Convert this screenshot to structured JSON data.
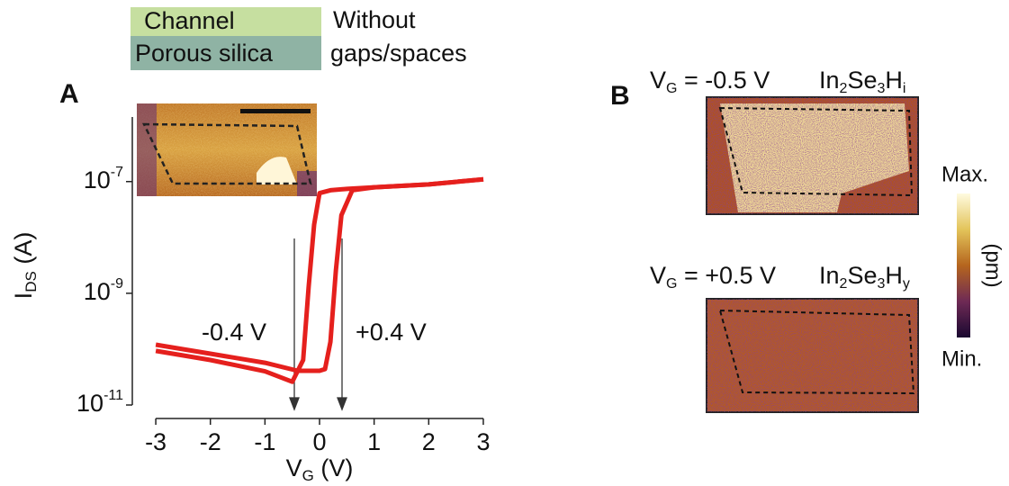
{
  "legend_boxes": {
    "channel": "Channel",
    "porous_silica": "Porous silica",
    "note": [
      "Without",
      "gaps/spaces"
    ]
  },
  "panel_a": {
    "label": "A"
  },
  "panel_b": {
    "label": "B",
    "images": [
      {
        "gate": [
          "V",
          "G",
          " = -0.5 V"
        ],
        "phase": [
          "In",
          "2",
          "Se",
          "3",
          "H",
          "i"
        ]
      },
      {
        "gate": [
          "V",
          "G",
          " = +0.5 V"
        ],
        "phase": [
          "In",
          "2",
          "Se",
          "3",
          "H",
          "y"
        ]
      }
    ],
    "colorbar": {
      "max": "Max.",
      "min": "Min.",
      "unit": "(pm)"
    }
  },
  "chart_data": {
    "type": "line",
    "xlabel": [
      "V",
      "G",
      " (V)"
    ],
    "ylabel": [
      "I",
      "DS",
      " (A)"
    ],
    "log_y": true,
    "xlim": [
      -3.43,
      3.38
    ],
    "ylim": [
      1e-11,
      2.5e-06
    ],
    "xticks": [
      -3,
      -2,
      -1,
      0,
      1,
      2,
      3
    ],
    "yticks": [
      {
        "value": 1e-11,
        "label": "10",
        "sup": "-11"
      },
      {
        "value": 1e-09,
        "label": "10",
        "sup": "-9"
      },
      {
        "value": 1e-07,
        "label": "10",
        "sup": "-7"
      }
    ],
    "series": [
      {
        "color": "#e5201d",
        "x": [
          -3,
          -2,
          -1,
          -0.5,
          -0.3,
          -0.2,
          -0.1,
          0,
          0.2,
          0.5,
          1,
          2,
          3
        ],
        "values": [
          9.3e-11,
          6.4e-11,
          4e-11,
          2.6e-11,
          6.4e-11,
          1.3e-09,
          1.7e-08,
          6.2e-08,
          7e-08,
          7.4e-08,
          7.9e-08,
          8.9e-08,
          1.1e-07
        ]
      },
      {
        "color": "#e5201d",
        "x": [
          -3,
          -2,
          -1,
          -0.4,
          0,
          0.1,
          0.2,
          0.3,
          0.4,
          0.6,
          1,
          2,
          3
        ],
        "values": [
          1.2e-10,
          8.3e-11,
          5.7e-11,
          4.1e-11,
          4.1e-11,
          4.4e-11,
          1.35e-10,
          2.6e-09,
          2.5e-08,
          7e-08,
          7.9e-08,
          8.9e-08,
          1.1e-07
        ]
      }
    ],
    "annotations": [
      "-0.4 V",
      "+0.4 V"
    ]
  }
}
